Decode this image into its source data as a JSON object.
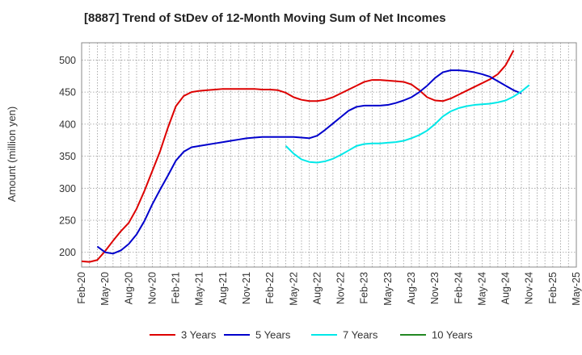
{
  "title": "[8887]  Trend of StDev of 12-Month Moving Sum of Net Incomes",
  "chart_data": {
    "type": "line",
    "title": "[8887]  Trend of StDev of 12-Month Moving Sum of Net Incomes",
    "xlabel": "",
    "ylabel": "Amount (million yen)",
    "ylim": [
      177,
      527
    ],
    "yticks": [
      200,
      250,
      300,
      350,
      400,
      450,
      500
    ],
    "xticks": [
      "Feb-20",
      "May-20",
      "Aug-20",
      "Nov-20",
      "Feb-21",
      "May-21",
      "Aug-21",
      "Nov-21",
      "Feb-22",
      "May-22",
      "Aug-22",
      "Nov-22",
      "Feb-23",
      "May-23",
      "Aug-23",
      "Nov-23",
      "Feb-24",
      "May-24",
      "Aug-24",
      "Nov-24",
      "Feb-25",
      "May-25"
    ],
    "grid": true,
    "legend_position": "bottom",
    "series": [
      {
        "name": "3 Years",
        "color": "#dd0000",
        "start_index": 0,
        "values": [
          186,
          185,
          188,
          202,
          218,
          233,
          246,
          268,
          296,
          327,
          358,
          395,
          428,
          444,
          450,
          452,
          453,
          454,
          455,
          455,
          455,
          455,
          455,
          454,
          454,
          453,
          449,
          442,
          438,
          436,
          436,
          438,
          442,
          448,
          454,
          460,
          466,
          469,
          469,
          468,
          467,
          466,
          462,
          453,
          442,
          437,
          436,
          440,
          446,
          452,
          458,
          464,
          470,
          478,
          492,
          515
        ]
      },
      {
        "name": "5 Years",
        "color": "#0000cc",
        "start_index": 2,
        "values": [
          209,
          200,
          198,
          203,
          213,
          228,
          249,
          275,
          298,
          320,
          343,
          357,
          364,
          366,
          368,
          370,
          372,
          374,
          376,
          378,
          379,
          380,
          380,
          380,
          380,
          380,
          379,
          378,
          382,
          391,
          401,
          411,
          421,
          427,
          429,
          429,
          429,
          430,
          433,
          437,
          442,
          450,
          460,
          472,
          481,
          484,
          484,
          483,
          481,
          478,
          474,
          467,
          460,
          453,
          448
        ]
      },
      {
        "name": "7 Years",
        "color": "#00e8e8",
        "start_index": 26,
        "values": [
          366,
          354,
          345,
          341,
          340,
          342,
          346,
          352,
          359,
          366,
          369,
          370,
          370,
          371,
          372,
          374,
          378,
          383,
          390,
          400,
          412,
          420,
          425,
          428,
          430,
          431,
          432,
          434,
          437,
          443,
          451,
          461
        ]
      },
      {
        "name": "10 Years",
        "color": "#228822",
        "start_index": 0,
        "values": []
      }
    ]
  }
}
